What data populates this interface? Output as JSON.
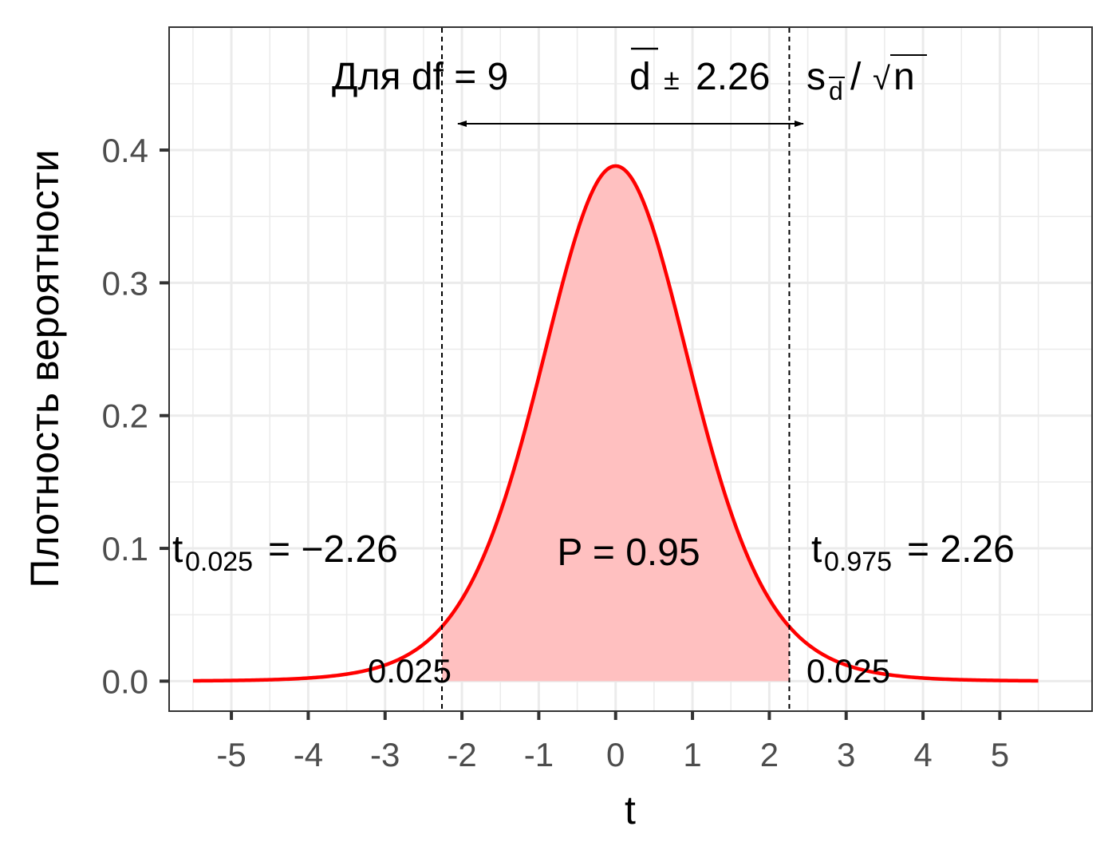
{
  "chart_data": {
    "type": "area",
    "xlabel": "t",
    "ylabel": "Плотность вероятности",
    "xlim": [
      -5.8,
      6.2
    ],
    "ylim": [
      -0.022,
      0.492
    ],
    "x_ticks": [
      -5,
      -4,
      -3,
      -2,
      -1,
      0,
      1,
      2,
      3,
      4,
      5
    ],
    "x_tick_labels": [
      "-5",
      "-4",
      "-3",
      "-2",
      "-1",
      "0",
      "1",
      "2",
      "3",
      "4",
      "5"
    ],
    "y_ticks": [
      0,
      0.1,
      0.2,
      0.3,
      0.4
    ],
    "y_tick_labels": [
      "0.0",
      "0.1",
      "0.2",
      "0.3",
      "0.4"
    ],
    "grid": true,
    "series": [
      {
        "distribution": "t",
        "df": 9,
        "x_range": [
          -5.5,
          5.5
        ],
        "color": "#ff0000",
        "shaded_region": [
          -2.26,
          2.26
        ],
        "fill_color": "#ffc0c0"
      }
    ],
    "critical_values": [
      -2.26,
      2.26
    ],
    "annotations": {
      "df_label": "Для df = 9",
      "interval_d": "d",
      "interval_pm": "±",
      "interval_value": "2.26",
      "interval_s": "s",
      "interval_s_sub": "d",
      "interval_slash": "/",
      "interval_root": "√",
      "interval_n": "n",
      "left_t": "t",
      "left_sub": "0.025",
      "left_value": " = −2.26",
      "right_t": "t",
      "right_sub": "0.975",
      "right_value": " = 2.26",
      "center_label": "P = 0.95",
      "left_tail": "0.025",
      "right_tail": "0.025"
    },
    "colors": {
      "curve": "#ff0000",
      "fill": "#ffc0c0",
      "grid": "#ebebeb",
      "panel_border": "#333333",
      "tick_text": "#4d4d4d"
    }
  }
}
